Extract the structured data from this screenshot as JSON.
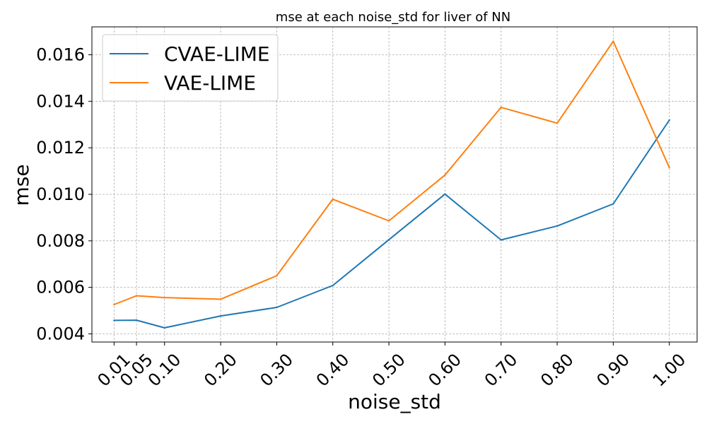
{
  "chart_data": {
    "type": "line",
    "title": "mse at each noise_std for liver of NN",
    "xlabel": "noise_std",
    "ylabel": "mse",
    "x": [
      0.01,
      0.05,
      0.1,
      0.2,
      0.3,
      0.4,
      0.5,
      0.6,
      0.7,
      0.8,
      0.9,
      1.0
    ],
    "x_tick_labels": [
      "0.01",
      "0.05",
      "0.10",
      "0.20",
      "0.30",
      "0.40",
      "0.50",
      "0.60",
      "0.70",
      "0.80",
      "0.90",
      "1.00"
    ],
    "xlim": [
      -0.0295,
      1.0495
    ],
    "ylim": [
      0.00365,
      0.0172
    ],
    "y_ticks": [
      0.004,
      0.006,
      0.008,
      0.01,
      0.012,
      0.014,
      0.016
    ],
    "y_tick_labels": [
      "0.004",
      "0.006",
      "0.008",
      "0.010",
      "0.012",
      "0.014",
      "0.016"
    ],
    "grid": true,
    "legend_position": "upper-left",
    "series": [
      {
        "name": "CVAE-LIME",
        "color": "#1f77b4",
        "values": [
          0.00458,
          0.00459,
          0.00426,
          0.00477,
          0.00514,
          0.00608,
          0.00805,
          0.01001,
          0.00804,
          0.00864,
          0.00959,
          0.01319
        ]
      },
      {
        "name": "VAE-LIME",
        "color": "#ff7f0e",
        "values": [
          0.00526,
          0.00564,
          0.00556,
          0.00549,
          0.0065,
          0.00979,
          0.00886,
          0.01083,
          0.01374,
          0.01306,
          0.01658,
          0.01115
        ]
      }
    ]
  }
}
